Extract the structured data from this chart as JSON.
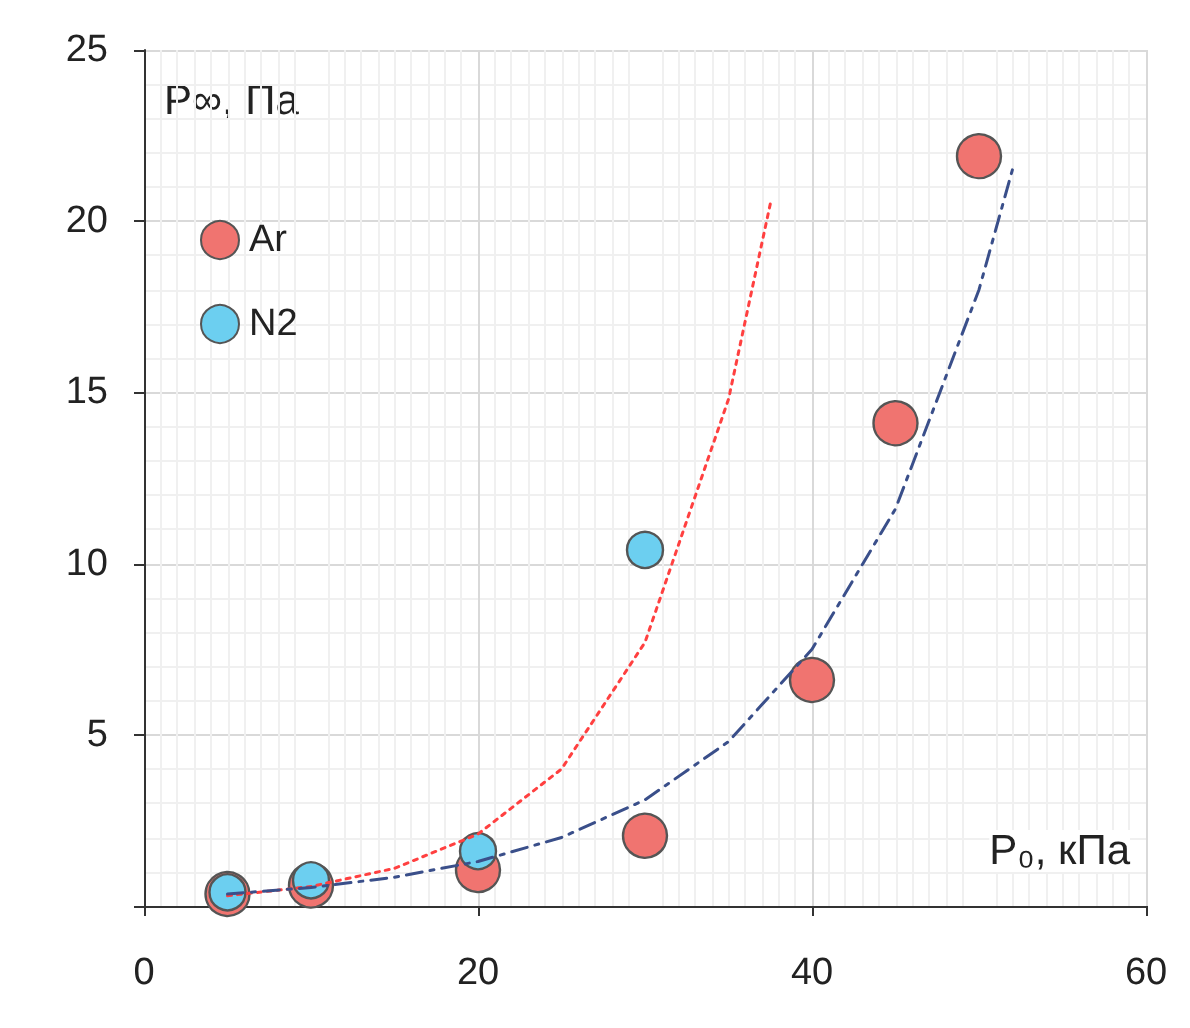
{
  "chart_data": {
    "type": "scatter",
    "xlabel": "P₀, кПа",
    "ylabel": "P∞, Па",
    "xlim": [
      0,
      60
    ],
    "xticks": [
      0,
      20,
      40,
      60
    ],
    "ylim": [
      0,
      25
    ],
    "yticks": [
      {
        "value": 0,
        "label": null
      },
      5,
      10,
      15,
      20,
      25
    ],
    "grid": true,
    "legend": "top left",
    "marker": "circle",
    "series": [
      {
        "type": "line",
        "color": "#ff4040",
        "line_style": "dotted",
        "marker": "none",
        "x": [
          5,
          10,
          15,
          20,
          25,
          30,
          35,
          37.5
        ],
        "values": [
          0.3,
          0.57,
          1.1,
          2.1,
          4.0,
          7.7,
          14.8,
          20.5
        ]
      },
      {
        "type": "line",
        "color": "#3a4f8a",
        "line_style": "dashed",
        "marker": "none",
        "x": [
          5,
          10,
          15,
          20,
          25,
          30,
          35,
          40,
          45,
          50,
          52
        ],
        "values": [
          0.35,
          0.54,
          0.84,
          1.3,
          2.0,
          3.1,
          4.8,
          7.5,
          11.6,
          18.0,
          21.5
        ]
      },
      {
        "name": "Ar",
        "color": "#f07470",
        "x": [
          5,
          10,
          20,
          30,
          40,
          45,
          50
        ],
        "values": [
          0.35,
          0.6,
          1.05,
          2.05,
          6.6,
          14.1,
          21.9
        ]
      },
      {
        "name": "N2",
        "color": "#6ccff0",
        "x": [
          5,
          10,
          20,
          30
        ],
        "values": [
          0.4,
          0.75,
          1.6,
          10.4
        ]
      }
    ]
  }
}
